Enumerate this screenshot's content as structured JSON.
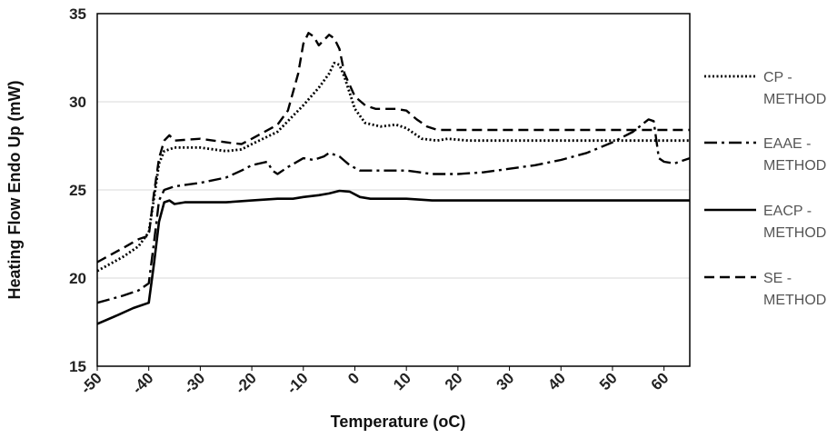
{
  "chart_data": {
    "type": "line",
    "xlabel": "Temperature (oC)",
    "ylabel": "Heating Flow Endo Up (mW)",
    "xlim": [
      -50,
      65
    ],
    "ylim": [
      15,
      35
    ],
    "x_ticks": [
      "-50",
      "-40",
      "-30",
      "-20",
      "-10",
      "0",
      "10",
      "20",
      "30",
      "40",
      "50",
      "60"
    ],
    "y_ticks": [
      "15",
      "20",
      "25",
      "30",
      "35"
    ],
    "grid": "horizontal",
    "legend_position": "right",
    "series": [
      {
        "name_lines": [
          "CP -",
          "METHOD"
        ],
        "dash": "dotted",
        "points": [
          [
            -50,
            20.4
          ],
          [
            -45,
            21.2
          ],
          [
            -42,
            21.8
          ],
          [
            -40,
            22.6
          ],
          [
            -39,
            24.5
          ],
          [
            -38,
            26.5
          ],
          [
            -37,
            27.2
          ],
          [
            -35,
            27.4
          ],
          [
            -30,
            27.4
          ],
          [
            -25,
            27.2
          ],
          [
            -22,
            27.3
          ],
          [
            -20,
            27.6
          ],
          [
            -15,
            28.3
          ],
          [
            -12,
            29.2
          ],
          [
            -10,
            29.8
          ],
          [
            -7,
            30.8
          ],
          [
            -5,
            31.6
          ],
          [
            -4,
            32.2
          ],
          [
            -3,
            32.1
          ],
          [
            -2,
            31.4
          ],
          [
            0,
            29.6
          ],
          [
            2,
            28.8
          ],
          [
            5,
            28.6
          ],
          [
            8,
            28.7
          ],
          [
            10,
            28.5
          ],
          [
            13,
            27.9
          ],
          [
            16,
            27.8
          ],
          [
            18,
            27.9
          ],
          [
            22,
            27.8
          ],
          [
            30,
            27.8
          ],
          [
            40,
            27.8
          ],
          [
            50,
            27.8
          ],
          [
            60,
            27.8
          ],
          [
            65,
            27.8
          ]
        ]
      },
      {
        "name_lines": [
          "EAAE -",
          "METHOD"
        ],
        "dash": "dashdot",
        "points": [
          [
            -50,
            18.6
          ],
          [
            -45,
            19.0
          ],
          [
            -42,
            19.3
          ],
          [
            -40,
            19.7
          ],
          [
            -39,
            22.0
          ],
          [
            -38,
            24.4
          ],
          [
            -37,
            25.0
          ],
          [
            -35,
            25.2
          ],
          [
            -30,
            25.4
          ],
          [
            -25,
            25.7
          ],
          [
            -22,
            26.1
          ],
          [
            -20,
            26.4
          ],
          [
            -17,
            26.6
          ],
          [
            -16,
            26.1
          ],
          [
            -15,
            25.9
          ],
          [
            -13,
            26.3
          ],
          [
            -10,
            26.8
          ],
          [
            -8,
            26.7
          ],
          [
            -6,
            26.9
          ],
          [
            -5,
            27.1
          ],
          [
            -3,
            26.9
          ],
          [
            -1,
            26.4
          ],
          [
            1,
            26.1
          ],
          [
            5,
            26.1
          ],
          [
            10,
            26.1
          ],
          [
            15,
            25.9
          ],
          [
            20,
            25.9
          ],
          [
            25,
            26.0
          ],
          [
            30,
            26.2
          ],
          [
            35,
            26.4
          ],
          [
            40,
            26.7
          ],
          [
            45,
            27.1
          ],
          [
            50,
            27.7
          ],
          [
            54,
            28.3
          ],
          [
            57,
            29.0
          ],
          [
            58,
            28.9
          ],
          [
            59,
            26.8
          ],
          [
            60,
            26.6
          ],
          [
            62,
            26.5
          ],
          [
            65,
            26.8
          ]
        ]
      },
      {
        "name_lines": [
          "EACP -",
          "METHOD"
        ],
        "dash": "solid",
        "points": [
          [
            -50,
            17.4
          ],
          [
            -46,
            17.9
          ],
          [
            -43,
            18.3
          ],
          [
            -40,
            18.6
          ],
          [
            -39,
            20.8
          ],
          [
            -38,
            23.2
          ],
          [
            -37,
            24.3
          ],
          [
            -36,
            24.4
          ],
          [
            -35,
            24.2
          ],
          [
            -33,
            24.3
          ],
          [
            -30,
            24.3
          ],
          [
            -25,
            24.3
          ],
          [
            -20,
            24.4
          ],
          [
            -15,
            24.5
          ],
          [
            -12,
            24.5
          ],
          [
            -10,
            24.6
          ],
          [
            -7,
            24.7
          ],
          [
            -5,
            24.8
          ],
          [
            -3,
            24.95
          ],
          [
            -1,
            24.9
          ],
          [
            1,
            24.6
          ],
          [
            3,
            24.5
          ],
          [
            6,
            24.5
          ],
          [
            10,
            24.5
          ],
          [
            15,
            24.4
          ],
          [
            20,
            24.4
          ],
          [
            30,
            24.4
          ],
          [
            40,
            24.4
          ],
          [
            50,
            24.4
          ],
          [
            60,
            24.4
          ],
          [
            65,
            24.4
          ]
        ]
      },
      {
        "name_lines": [
          "SE -",
          "METHOD"
        ],
        "dash": "dashed",
        "points": [
          [
            -50,
            20.9
          ],
          [
            -45,
            21.7
          ],
          [
            -42,
            22.2
          ],
          [
            -40,
            22.4
          ],
          [
            -39,
            24.8
          ],
          [
            -38,
            26.8
          ],
          [
            -37,
            27.8
          ],
          [
            -36,
            28.1
          ],
          [
            -35,
            27.8
          ],
          [
            -30,
            27.9
          ],
          [
            -25,
            27.7
          ],
          [
            -22,
            27.6
          ],
          [
            -20,
            27.9
          ],
          [
            -15,
            28.7
          ],
          [
            -13,
            29.5
          ],
          [
            -11,
            31.6
          ],
          [
            -10,
            33.3
          ],
          [
            -9,
            33.9
          ],
          [
            -8,
            33.7
          ],
          [
            -7,
            33.2
          ],
          [
            -6,
            33.5
          ],
          [
            -5,
            33.8
          ],
          [
            -4,
            33.6
          ],
          [
            -3,
            33.0
          ],
          [
            -2,
            31.6
          ],
          [
            0,
            30.3
          ],
          [
            2,
            29.8
          ],
          [
            4,
            29.6
          ],
          [
            6,
            29.6
          ],
          [
            8,
            29.6
          ],
          [
            10,
            29.5
          ],
          [
            12,
            29.0
          ],
          [
            14,
            28.6
          ],
          [
            16,
            28.4
          ],
          [
            20,
            28.4
          ],
          [
            30,
            28.4
          ],
          [
            40,
            28.4
          ],
          [
            50,
            28.4
          ],
          [
            60,
            28.4
          ],
          [
            65,
            28.4
          ]
        ]
      }
    ],
    "colors": {
      "line": "#000000",
      "grid": "#d9d9d9",
      "legend_text": "#555555"
    }
  }
}
